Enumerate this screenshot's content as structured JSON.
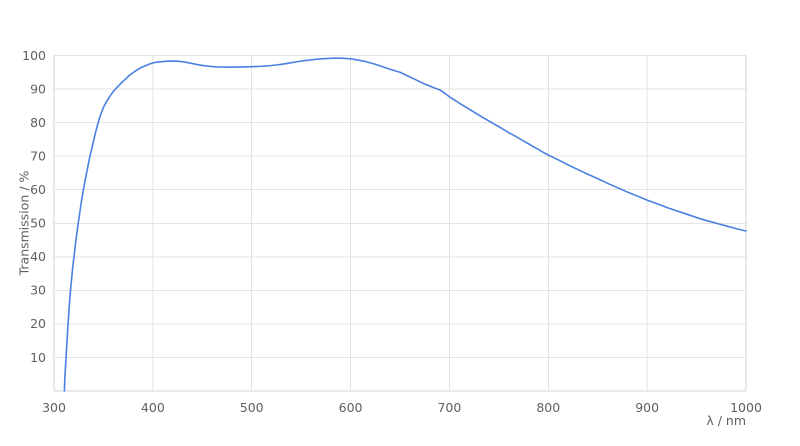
{
  "chart_data": {
    "type": "line",
    "title": "",
    "xlabel": "λ / nm",
    "ylabel": "Transmission / %",
    "xlim": [
      300,
      1000
    ],
    "ylim": [
      0,
      100
    ],
    "x_ticks": [
      300,
      400,
      500,
      600,
      700,
      800,
      900,
      1000
    ],
    "y_ticks": [
      10,
      20,
      30,
      40,
      50,
      60,
      70,
      80,
      90,
      100
    ],
    "grid": true,
    "legend": "none",
    "colors": {
      "line": "#4a80e0",
      "grid": "#e3e3e3",
      "frame": "#d4d4d4",
      "labels": "#606060",
      "background": "#ffffff"
    },
    "series": [
      {
        "name": "Transmission",
        "points": [
          [
            310.5,
            0
          ],
          [
            311,
            4
          ],
          [
            312,
            9
          ],
          [
            313,
            14
          ],
          [
            314,
            19
          ],
          [
            315,
            23.5
          ],
          [
            316,
            27.5
          ],
          [
            317,
            31
          ],
          [
            318,
            34
          ],
          [
            319,
            37
          ],
          [
            320,
            39.5
          ],
          [
            322,
            44.5
          ],
          [
            324,
            49
          ],
          [
            326,
            53
          ],
          [
            328,
            57
          ],
          [
            330,
            60.5
          ],
          [
            332,
            63.5
          ],
          [
            334,
            66.5
          ],
          [
            336,
            69.5
          ],
          [
            338,
            72
          ],
          [
            340,
            74.5
          ],
          [
            342,
            77
          ],
          [
            344,
            79.3
          ],
          [
            346,
            81.3
          ],
          [
            348,
            83
          ],
          [
            350,
            84.5
          ],
          [
            353,
            86.2
          ],
          [
            356,
            87.6
          ],
          [
            360,
            89.3
          ],
          [
            364,
            90.6
          ],
          [
            368,
            91.8
          ],
          [
            372,
            92.9
          ],
          [
            376,
            94
          ],
          [
            380,
            94.9
          ],
          [
            384,
            95.7
          ],
          [
            388,
            96.4
          ],
          [
            392,
            96.9
          ],
          [
            396,
            97.4
          ],
          [
            400,
            97.8
          ],
          [
            405,
            98.05
          ],
          [
            410,
            98.2
          ],
          [
            415,
            98.3
          ],
          [
            420,
            98.35
          ],
          [
            425,
            98.3
          ],
          [
            430,
            98.15
          ],
          [
            435,
            97.9
          ],
          [
            440,
            97.6
          ],
          [
            445,
            97.3
          ],
          [
            450,
            97.05
          ],
          [
            455,
            96.85
          ],
          [
            460,
            96.7
          ],
          [
            465,
            96.6
          ],
          [
            470,
            96.57
          ],
          [
            475,
            96.55
          ],
          [
            480,
            96.55
          ],
          [
            485,
            96.55
          ],
          [
            490,
            96.58
          ],
          [
            495,
            96.62
          ],
          [
            500,
            96.67
          ],
          [
            505,
            96.73
          ],
          [
            510,
            96.8
          ],
          [
            515,
            96.9
          ],
          [
            520,
            97.02
          ],
          [
            525,
            97.17
          ],
          [
            530,
            97.37
          ],
          [
            535,
            97.6
          ],
          [
            540,
            97.85
          ],
          [
            545,
            98.1
          ],
          [
            550,
            98.32
          ],
          [
            555,
            98.52
          ],
          [
            560,
            98.7
          ],
          [
            565,
            98.86
          ],
          [
            570,
            99
          ],
          [
            575,
            99.1
          ],
          [
            580,
            99.16
          ],
          [
            585,
            99.2
          ],
          [
            590,
            99.2
          ],
          [
            595,
            99.12
          ],
          [
            600,
            99
          ],
          [
            605,
            98.8
          ],
          [
            610,
            98.5
          ],
          [
            615,
            98.2
          ],
          [
            620,
            97.8
          ],
          [
            625,
            97.4
          ],
          [
            630,
            96.9
          ],
          [
            635,
            96.4
          ],
          [
            640,
            95.9
          ],
          [
            645,
            95.45
          ],
          [
            650,
            95
          ],
          [
            655,
            94.3
          ],
          [
            660,
            93.6
          ],
          [
            665,
            92.9
          ],
          [
            670,
            92.2
          ],
          [
            675,
            91.5
          ],
          [
            680,
            90.9
          ],
          [
            685,
            90.3
          ],
          [
            690,
            89.8
          ],
          [
            695,
            88.8
          ],
          [
            700,
            87.7
          ],
          [
            705,
            86.75
          ],
          [
            710,
            85.8
          ],
          [
            715,
            84.9
          ],
          [
            720,
            84
          ],
          [
            725,
            83.1
          ],
          [
            730,
            82.2
          ],
          [
            735,
            81.3
          ],
          [
            740,
            80.45
          ],
          [
            745,
            79.6
          ],
          [
            750,
            78.8
          ],
          [
            755,
            77.9
          ],
          [
            760,
            77
          ],
          [
            765,
            76.2
          ],
          [
            770,
            75.4
          ],
          [
            775,
            74.5
          ],
          [
            780,
            73.7
          ],
          [
            785,
            72.8
          ],
          [
            790,
            72
          ],
          [
            795,
            71.1
          ],
          [
            800,
            70.3
          ],
          [
            810,
            68.9
          ],
          [
            820,
            67.4
          ],
          [
            830,
            66
          ],
          [
            840,
            64.6
          ],
          [
            850,
            63.3
          ],
          [
            860,
            61.9
          ],
          [
            870,
            60.6
          ],
          [
            880,
            59.3
          ],
          [
            890,
            58.1
          ],
          [
            900,
            56.9
          ],
          [
            910,
            55.8
          ],
          [
            920,
            54.7
          ],
          [
            930,
            53.7
          ],
          [
            940,
            52.7
          ],
          [
            950,
            51.7
          ],
          [
            960,
            50.8
          ],
          [
            970,
            50
          ],
          [
            980,
            49.2
          ],
          [
            990,
            48.4
          ],
          [
            1000,
            47.7
          ]
        ]
      }
    ]
  }
}
